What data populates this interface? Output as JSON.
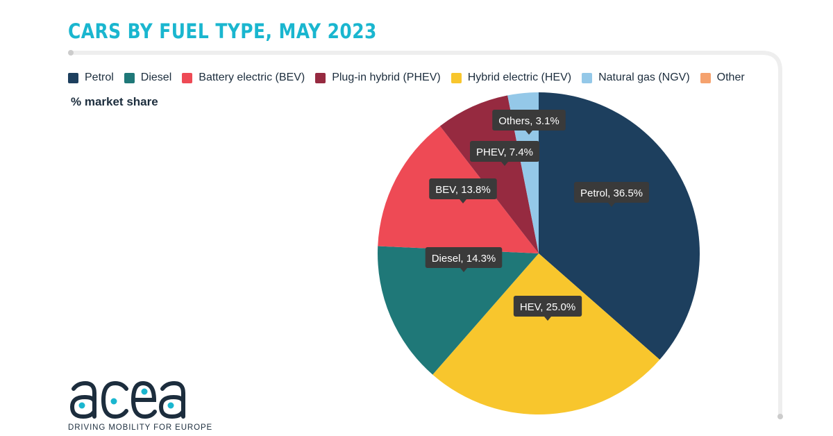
{
  "title": "CARS BY FUEL TYPE, MAY 2023",
  "subtitle": "% market share",
  "legend": [
    {
      "label": "Petrol",
      "color": "#1d3f5e"
    },
    {
      "label": "Diesel",
      "color": "#1f7878"
    },
    {
      "label": "Battery electric (BEV)",
      "color": "#ee4a55"
    },
    {
      "label": "Plug-in hybrid (PHEV)",
      "color": "#962a40"
    },
    {
      "label": "Hybrid electric (HEV)",
      "color": "#f8c62d"
    },
    {
      "label": "Natural gas (NGV)",
      "color": "#94c8e8"
    },
    {
      "label": "Other",
      "color": "#f5a26e"
    }
  ],
  "chart_data": {
    "type": "pie",
    "title": "CARS BY FUEL TYPE, MAY 2023",
    "subtitle": "% market share",
    "unit": "%",
    "slices": [
      {
        "name": "Petrol",
        "value": 36.5,
        "color": "#1d3f5e",
        "label": "Petrol, 36.5%"
      },
      {
        "name": "Hybrid electric (HEV)",
        "value": 25.0,
        "color": "#f8c62d",
        "label": "HEV, 25.0%"
      },
      {
        "name": "Diesel",
        "value": 14.3,
        "color": "#1f7878",
        "label": "Diesel, 14.3%"
      },
      {
        "name": "Battery electric (BEV)",
        "value": 13.8,
        "color": "#ee4a55",
        "label": "BEV, 13.8%"
      },
      {
        "name": "Plug-in hybrid (PHEV)",
        "value": 7.4,
        "color": "#962a40",
        "label": "PHEV, 7.4%"
      },
      {
        "name": "Natural gas (NGV)",
        "value": 3.1,
        "color": "#94c8e8",
        "label": "Others, 3.1%"
      }
    ],
    "legend_position": "top"
  },
  "logo": {
    "text": "acea",
    "tagline": "DRIVING MOBILITY FOR EUROPE",
    "color": "#1c2d3d",
    "accent": "#1ab6cf"
  },
  "colors": {
    "title": "#1ab6cf",
    "frame": "#eeeeee",
    "label_bg": "#3a3a3a",
    "text": "#1c2d3d"
  }
}
